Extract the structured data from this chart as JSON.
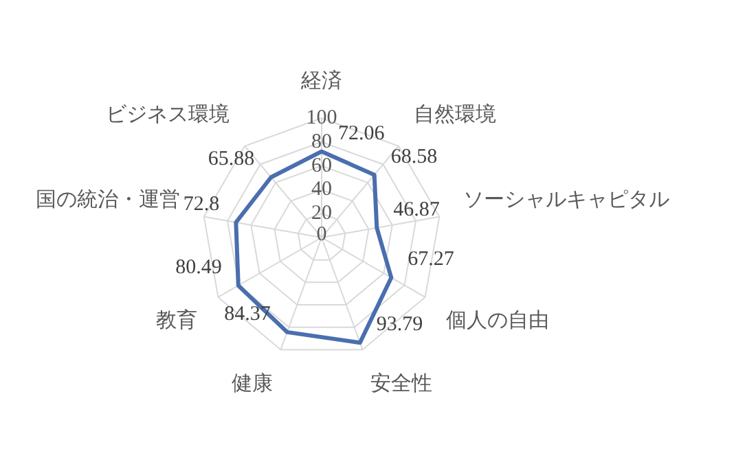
{
  "chart_data": {
    "type": "radar",
    "categories": [
      "経済",
      "自然環境",
      "ソーシャルキャピタル",
      "個人の自由",
      "安全性",
      "健康",
      "教育",
      "国の統治・運営",
      "ビジネス環境"
    ],
    "series": [
      {
        "color": "#4a6eae",
        "values": [
          72.06,
          68.58,
          46.87,
          67.27,
          93.79,
          84.37,
          80.49,
          72.8,
          65.88
        ]
      }
    ],
    "ylim": [
      0,
      100
    ],
    "yticks": [
      0,
      20,
      40,
      60,
      80,
      100
    ],
    "data_labels": true,
    "grid": true,
    "legend": false,
    "marker": "none"
  }
}
